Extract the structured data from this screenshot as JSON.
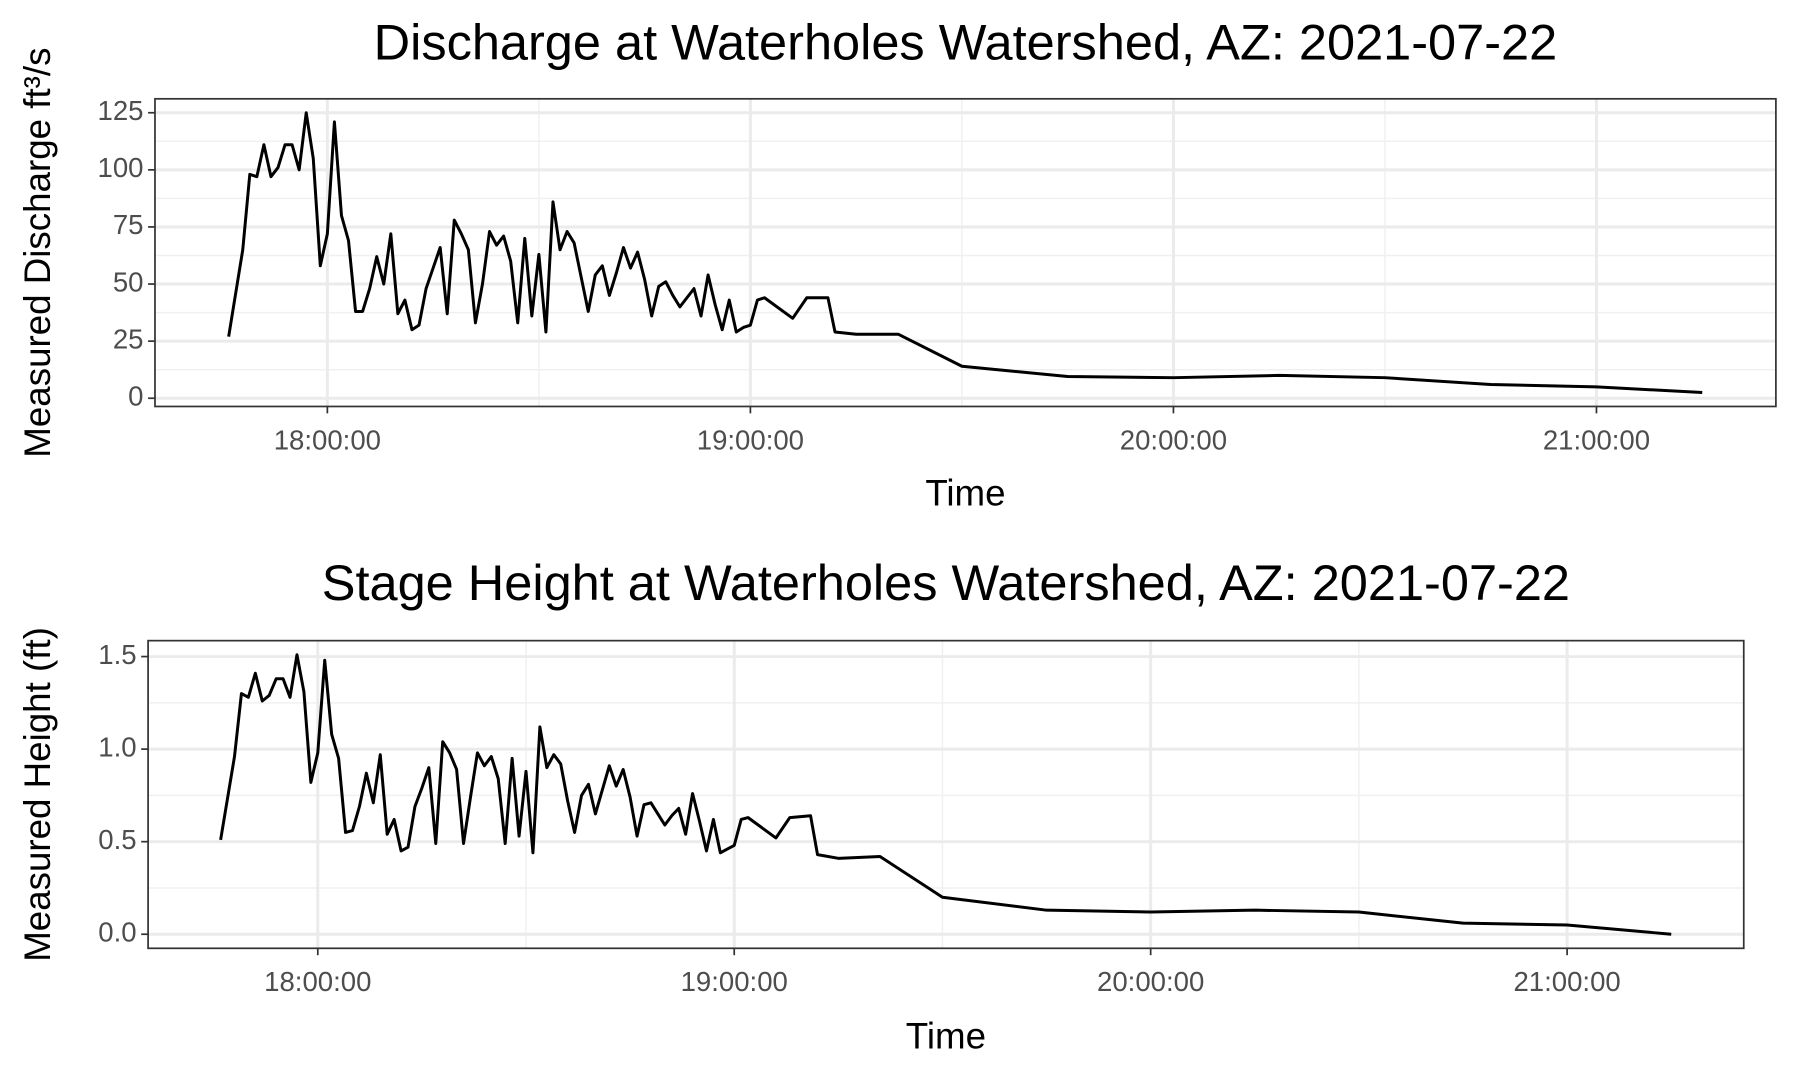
{
  "chart_data": [
    {
      "type": "line",
      "title": "Discharge at Waterholes Watershed, AZ: 2021-07-22",
      "x_label": "Time",
      "y_label": "Measured Discharge ft³/s",
      "color": "#000000",
      "grid": true,
      "x": [
        "17:46:00",
        "17:48:00",
        "17:49:00",
        "17:50:00",
        "17:51:00",
        "17:52:00",
        "17:53:00",
        "17:54:00",
        "17:55:00",
        "17:56:00",
        "17:57:00",
        "17:58:00",
        "17:59:00",
        "18:00:00",
        "18:01:00",
        "18:02:00",
        "18:03:00",
        "18:04:00",
        "18:05:00",
        "18:06:00",
        "18:07:00",
        "18:08:00",
        "18:09:00",
        "18:10:00",
        "18:11:00",
        "18:12:00",
        "18:13:00",
        "18:14:00",
        "18:15:00",
        "18:16:00",
        "18:17:00",
        "18:18:00",
        "18:19:00",
        "18:20:00",
        "18:21:00",
        "18:22:00",
        "18:23:00",
        "18:24:00",
        "18:25:00",
        "18:26:00",
        "18:27:00",
        "18:28:00",
        "18:29:00",
        "18:30:00",
        "18:31:00",
        "18:32:00",
        "18:33:00",
        "18:34:00",
        "18:35:00",
        "18:36:00",
        "18:37:00",
        "18:38:00",
        "18:39:00",
        "18:40:00",
        "18:41:00",
        "18:42:00",
        "18:43:00",
        "18:44:00",
        "18:45:00",
        "18:46:00",
        "18:47:00",
        "18:48:00",
        "18:49:00",
        "18:50:00",
        "18:51:00",
        "18:52:00",
        "18:53:00",
        "18:54:00",
        "18:55:00",
        "18:56:00",
        "18:57:00",
        "18:58:00",
        "18:59:00",
        "19:00:00",
        "19:01:00",
        "19:02:00",
        "19:06:00",
        "19:08:00",
        "19:11:00",
        "19:12:00",
        "19:15:00",
        "19:21:00",
        "19:30:00",
        "19:45:00",
        "20:00:00",
        "20:15:00",
        "20:30:00",
        "20:45:00",
        "21:00:00",
        "21:15:00"
      ],
      "values": [
        27,
        65,
        98,
        97,
        111,
        97,
        101,
        111,
        111,
        100,
        125,
        105,
        58,
        72,
        121,
        80,
        69,
        38,
        38,
        48,
        62,
        50,
        72,
        37,
        43,
        30,
        32,
        48,
        57,
        66,
        37,
        78,
        72,
        65,
        33,
        50,
        73,
        67,
        71,
        60,
        33,
        70,
        36,
        63,
        29,
        86,
        65,
        73,
        68,
        53,
        38,
        54,
        58,
        45,
        55,
        66,
        57,
        64,
        52,
        36,
        49,
        51,
        45,
        40,
        44,
        48,
        36,
        54,
        41,
        30,
        43,
        29,
        31,
        32,
        43,
        44,
        35,
        44,
        44,
        29,
        28,
        28,
        14,
        9.5,
        9,
        10,
        9,
        6,
        5,
        2.5
      ],
      "xlim": [
        "17:35:33",
        "21:25:27"
      ],
      "xticks": [
        "18:00:00",
        "19:00:00",
        "20:00:00",
        "21:00:00"
      ],
      "ylim": [
        -3.6,
        131.1
      ],
      "yticks": [
        0,
        25,
        50,
        75,
        100,
        125
      ]
    },
    {
      "type": "line",
      "title": "Stage Height at Waterholes Watershed, AZ: 2021-07-22",
      "x_label": "Time",
      "y_label": "Measured Height (ft)",
      "color": "#000000",
      "grid": true,
      "x": [
        "17:46:00",
        "17:48:00",
        "17:49:00",
        "17:50:00",
        "17:51:00",
        "17:52:00",
        "17:53:00",
        "17:54:00",
        "17:55:00",
        "17:56:00",
        "17:57:00",
        "17:58:00",
        "17:59:00",
        "18:00:00",
        "18:01:00",
        "18:02:00",
        "18:03:00",
        "18:04:00",
        "18:05:00",
        "18:06:00",
        "18:07:00",
        "18:08:00",
        "18:09:00",
        "18:10:00",
        "18:11:00",
        "18:12:00",
        "18:13:00",
        "18:14:00",
        "18:15:00",
        "18:16:00",
        "18:17:00",
        "18:18:00",
        "18:19:00",
        "18:20:00",
        "18:21:00",
        "18:22:00",
        "18:23:00",
        "18:24:00",
        "18:25:00",
        "18:26:00",
        "18:27:00",
        "18:28:00",
        "18:29:00",
        "18:30:00",
        "18:31:00",
        "18:32:00",
        "18:33:00",
        "18:34:00",
        "18:35:00",
        "18:36:00",
        "18:37:00",
        "18:38:00",
        "18:39:00",
        "18:40:00",
        "18:41:00",
        "18:42:00",
        "18:43:00",
        "18:44:00",
        "18:45:00",
        "18:46:00",
        "18:47:00",
        "18:48:00",
        "18:49:00",
        "18:50:00",
        "18:51:00",
        "18:52:00",
        "18:53:00",
        "18:54:00",
        "18:55:00",
        "18:56:00",
        "18:57:00",
        "18:58:00",
        "18:59:00",
        "19:00:00",
        "19:01:00",
        "19:02:00",
        "19:06:00",
        "19:08:00",
        "19:11:00",
        "19:12:00",
        "19:15:00",
        "19:21:00",
        "19:30:00",
        "19:45:00",
        "20:00:00",
        "20:15:00",
        "20:30:00",
        "20:45:00",
        "21:00:00",
        "21:15:00"
      ],
      "values": [
        0.51,
        0.96,
        1.3,
        1.28,
        1.41,
        1.26,
        1.29,
        1.38,
        1.38,
        1.28,
        1.51,
        1.31,
        0.82,
        0.98,
        1.48,
        1.08,
        0.95,
        0.55,
        0.56,
        0.69,
        0.87,
        0.71,
        0.97,
        0.54,
        0.62,
        0.45,
        0.47,
        0.69,
        0.79,
        0.9,
        0.49,
        1.04,
        0.98,
        0.89,
        0.49,
        0.74,
        0.98,
        0.91,
        0.96,
        0.84,
        0.49,
        0.95,
        0.53,
        0.88,
        0.44,
        1.12,
        0.9,
        0.97,
        0.92,
        0.72,
        0.55,
        0.75,
        0.81,
        0.65,
        0.78,
        0.91,
        0.8,
        0.89,
        0.74,
        0.53,
        0.7,
        0.71,
        0.65,
        0.59,
        0.64,
        0.68,
        0.54,
        0.76,
        0.61,
        0.45,
        0.62,
        0.44,
        0.46,
        0.48,
        0.62,
        0.63,
        0.52,
        0.63,
        0.64,
        0.43,
        0.41,
        0.42,
        0.2,
        0.13,
        0.12,
        0.13,
        0.12,
        0.06,
        0.05,
        0
      ],
      "xlim": [
        "17:35:33",
        "21:25:27"
      ],
      "xticks": [
        "18:00:00",
        "19:00:00",
        "20:00:00",
        "21:00:00"
      ],
      "ylim": [
        -0.076,
        1.586
      ],
      "yticks": [
        {
          "value": 0,
          "label": "0.0"
        },
        0.5,
        {
          "value": 1,
          "label": "1.0"
        },
        1.5
      ]
    }
  ]
}
